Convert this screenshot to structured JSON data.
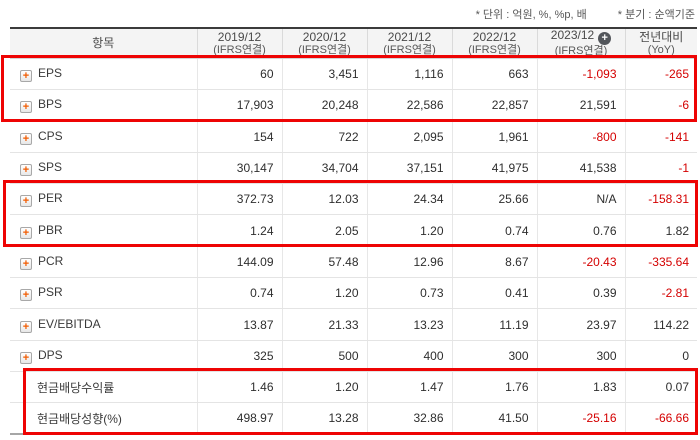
{
  "notes": {
    "unit": "* 단위 : 억원, %, %p, 배",
    "basis": "* 분기 : 순액기준"
  },
  "colors": {
    "negative_value": "#d40000",
    "highlight_box": "#ee0404",
    "expand_icon_plus": "#f25b00",
    "header_background": "#f4f4f4"
  },
  "table": {
    "item_header": "항목",
    "columns": [
      {
        "period": "2019/12",
        "basis": "(IFRS연결)",
        "add_badge": false
      },
      {
        "period": "2020/12",
        "basis": "(IFRS연결)",
        "add_badge": false
      },
      {
        "period": "2021/12",
        "basis": "(IFRS연결)",
        "add_badge": false
      },
      {
        "period": "2022/12",
        "basis": "(IFRS연결)",
        "add_badge": false
      },
      {
        "period": "2023/12",
        "basis": "(IFRS연결)",
        "add_badge": true
      },
      {
        "period": "전년대비",
        "basis": "(YoY)",
        "add_badge": false
      }
    ],
    "badge_glyph": "+",
    "expand_glyph": "+",
    "rows": [
      {
        "label": "EPS",
        "expandable": true,
        "values": [
          "60",
          "3,451",
          "1,116",
          "663",
          "-1,093",
          "-265"
        ]
      },
      {
        "label": "BPS",
        "expandable": true,
        "values": [
          "17,903",
          "20,248",
          "22,586",
          "22,857",
          "21,591",
          "-6"
        ]
      },
      {
        "label": "CPS",
        "expandable": true,
        "values": [
          "154",
          "722",
          "2,095",
          "1,961",
          "-800",
          "-141"
        ]
      },
      {
        "label": "SPS",
        "expandable": true,
        "values": [
          "30,147",
          "34,704",
          "37,151",
          "41,975",
          "41,538",
          "-1"
        ]
      },
      {
        "label": "PER",
        "expandable": true,
        "values": [
          "372.73",
          "12.03",
          "24.34",
          "25.66",
          "N/A",
          "-158.31"
        ]
      },
      {
        "label": "PBR",
        "expandable": true,
        "values": [
          "1.24",
          "2.05",
          "1.20",
          "0.74",
          "0.76",
          "1.82"
        ]
      },
      {
        "label": "PCR",
        "expandable": true,
        "values": [
          "144.09",
          "57.48",
          "12.96",
          "8.67",
          "-20.43",
          "-335.64"
        ]
      },
      {
        "label": "PSR",
        "expandable": true,
        "values": [
          "0.74",
          "1.20",
          "0.73",
          "0.41",
          "0.39",
          "-2.81"
        ]
      },
      {
        "label": "EV/EBITDA",
        "expandable": true,
        "values": [
          "13.87",
          "21.33",
          "13.23",
          "11.19",
          "23.97",
          "114.22"
        ]
      },
      {
        "label": "DPS",
        "expandable": true,
        "values": [
          "325",
          "500",
          "400",
          "300",
          "300",
          "0"
        ]
      },
      {
        "label": "현금배당수익률",
        "expandable": false,
        "values": [
          "1.46",
          "1.20",
          "1.47",
          "1.76",
          "1.83",
          "0.07"
        ]
      },
      {
        "label": "현금배당성향(%)",
        "expandable": false,
        "values": [
          "498.97",
          "13.28",
          "32.86",
          "41.50",
          "-25.16",
          "-66.66"
        ]
      }
    ],
    "highlighted_row_groups": [
      [
        "EPS",
        "BPS"
      ],
      [
        "PER",
        "PBR"
      ],
      [
        "현금배당수익률",
        "현금배당성향(%)"
      ]
    ]
  }
}
